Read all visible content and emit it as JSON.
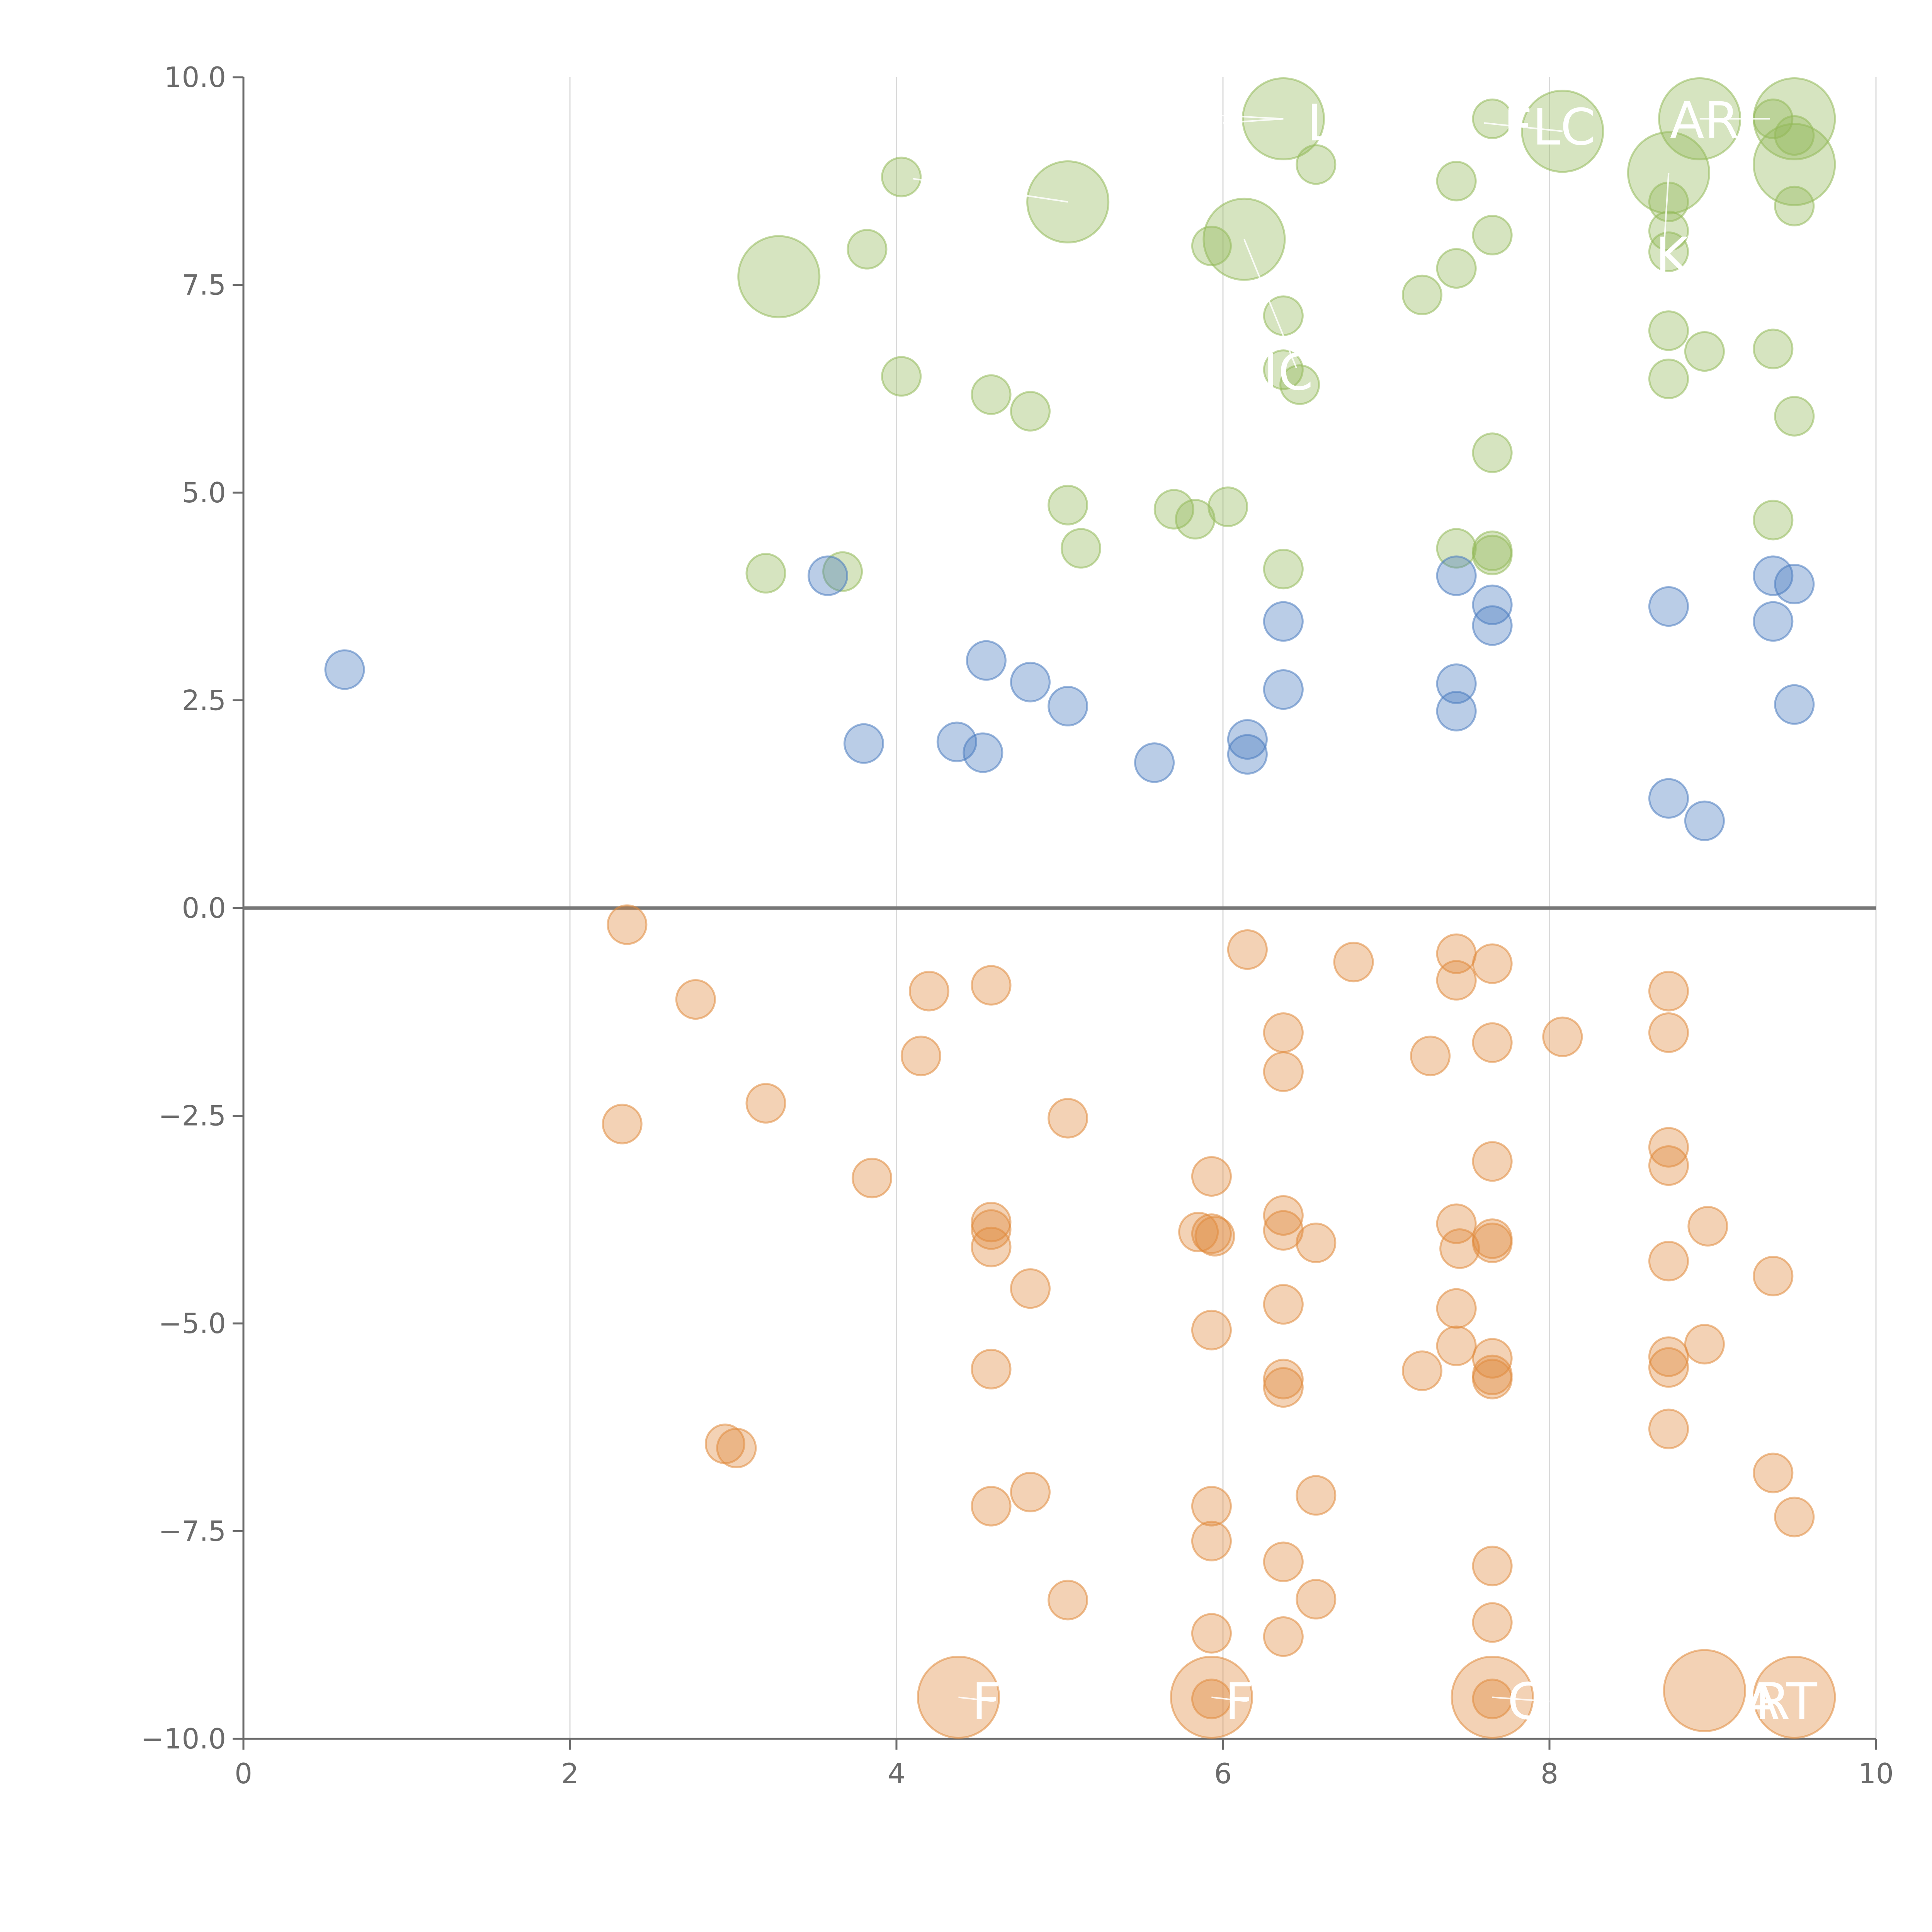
{
  "chart_data": {
    "type": "scatter",
    "title": "",
    "xlabel": "",
    "ylabel": "",
    "xlim": [
      0,
      10
    ],
    "ylim": [
      -10,
      10
    ],
    "x_ticks": [
      "0",
      "2",
      "4",
      "6",
      "8",
      "10"
    ],
    "y_ticks": [
      "−10.0",
      "−7.5",
      "−5.0",
      "−2.5",
      "0.0",
      "2.5",
      "5.0",
      "7.5",
      "10.0"
    ],
    "x_tick_values": [
      0,
      2,
      4,
      6,
      8,
      10
    ],
    "y_tick_values": [
      -10,
      -7.5,
      -5,
      -2.5,
      0,
      2.5,
      5,
      7.5,
      10
    ],
    "grid": "vertical lines at x ticks",
    "baseline": 0,
    "legend": "none",
    "colors": {
      "green": "#93b95a",
      "blue": "#4a7bbf",
      "orange": "#e08a3c",
      "axis": "#6b6b6b",
      "grid": "#d8d8d8",
      "baseline": "#777777"
    },
    "bubble_size_levels": {
      "small": 1,
      "large": 2.1
    },
    "series": [
      {
        "color_key": "green",
        "points": [
          [
            6.37,
            9.5,
            2
          ],
          [
            7.65,
            9.5,
            1
          ],
          [
            8.08,
            9.35,
            2
          ],
          [
            8.92,
            9.5,
            2
          ],
          [
            9.37,
            9.5,
            1
          ],
          [
            9.5,
            9.5,
            2
          ],
          [
            9.5,
            9.3,
            1
          ],
          [
            9.5,
            8.95,
            2
          ],
          [
            8.73,
            8.85,
            2
          ],
          [
            4.03,
            8.8,
            1
          ],
          [
            6.57,
            8.95,
            1
          ],
          [
            7.43,
            8.75,
            1
          ],
          [
            5.05,
            8.5,
            2
          ],
          [
            8.73,
            8.5,
            1
          ],
          [
            9.5,
            8.45,
            1
          ],
          [
            8.73,
            8.15,
            1
          ],
          [
            7.65,
            8.1,
            1
          ],
          [
            6.13,
            8.05,
            2
          ],
          [
            5.93,
            7.97,
            1
          ],
          [
            3.28,
            7.6,
            2
          ],
          [
            3.82,
            7.93,
            1
          ],
          [
            8.73,
            7.9,
            1
          ],
          [
            7.43,
            7.7,
            1
          ],
          [
            7.22,
            7.38,
            1
          ],
          [
            6.37,
            7.13,
            1
          ],
          [
            8.73,
            6.95,
            1
          ],
          [
            8.95,
            6.7,
            1
          ],
          [
            9.37,
            6.73,
            1
          ],
          [
            4.03,
            6.4,
            1
          ],
          [
            6.37,
            6.48,
            1
          ],
          [
            6.47,
            6.3,
            1
          ],
          [
            4.58,
            6.18,
            1
          ],
          [
            4.82,
            5.98,
            1
          ],
          [
            8.73,
            6.37,
            1
          ],
          [
            9.5,
            5.92,
            1
          ],
          [
            7.65,
            5.48,
            1
          ],
          [
            5.05,
            4.85,
            1
          ],
          [
            5.7,
            4.8,
            1
          ],
          [
            5.83,
            4.68,
            1
          ],
          [
            6.03,
            4.83,
            1
          ],
          [
            9.37,
            4.67,
            1
          ],
          [
            5.13,
            4.33,
            1
          ],
          [
            7.43,
            4.33,
            1
          ],
          [
            7.65,
            4.3,
            1
          ],
          [
            7.65,
            4.25,
            1
          ],
          [
            3.2,
            4.03,
            1
          ],
          [
            3.67,
            4.05,
            1
          ],
          [
            6.37,
            4.08,
            1
          ]
        ]
      },
      {
        "color_key": "blue",
        "points": [
          [
            0.62,
            2.87,
            1
          ],
          [
            3.58,
            4.0,
            1
          ],
          [
            3.8,
            1.98,
            1
          ],
          [
            4.37,
            2.0,
            1
          ],
          [
            4.53,
            1.87,
            1
          ],
          [
            4.55,
            2.98,
            1
          ],
          [
            4.82,
            2.72,
            1
          ],
          [
            5.05,
            2.43,
            1
          ],
          [
            5.58,
            1.75,
            1
          ],
          [
            6.15,
            2.03,
            1
          ],
          [
            6.15,
            1.85,
            1
          ],
          [
            6.37,
            3.45,
            1
          ],
          [
            6.37,
            2.63,
            1
          ],
          [
            7.43,
            4.0,
            1
          ],
          [
            7.43,
            2.7,
            1
          ],
          [
            7.43,
            2.37,
            1
          ],
          [
            7.65,
            3.65,
            1
          ],
          [
            7.65,
            3.4,
            1
          ],
          [
            8.73,
            3.63,
            1
          ],
          [
            8.73,
            1.32,
            1
          ],
          [
            8.95,
            1.05,
            1
          ],
          [
            9.37,
            4.0,
            1
          ],
          [
            9.37,
            3.45,
            1
          ],
          [
            9.5,
            3.9,
            1
          ],
          [
            9.5,
            2.45,
            1
          ]
        ]
      },
      {
        "color_key": "orange",
        "points": [
          [
            2.35,
            -0.2,
            1
          ],
          [
            2.77,
            -1.1,
            1
          ],
          [
            2.32,
            -2.6,
            1
          ],
          [
            3.2,
            -2.35,
            1
          ],
          [
            3.85,
            -3.25,
            1
          ],
          [
            4.15,
            -1.78,
            1
          ],
          [
            4.2,
            -1.0,
            1
          ],
          [
            4.58,
            -0.93,
            1
          ],
          [
            5.05,
            -2.53,
            1
          ],
          [
            2.95,
            -6.45,
            1
          ],
          [
            3.02,
            -6.5,
            1
          ],
          [
            4.58,
            -3.78,
            1
          ],
          [
            4.58,
            -3.87,
            1
          ],
          [
            4.58,
            -4.08,
            1
          ],
          [
            4.82,
            -4.58,
            1
          ],
          [
            4.58,
            -5.55,
            1
          ],
          [
            4.82,
            -7.03,
            1
          ],
          [
            4.58,
            -7.2,
            1
          ],
          [
            5.05,
            -8.33,
            1
          ],
          [
            4.38,
            -9.5,
            2
          ],
          [
            5.93,
            -9.5,
            2
          ],
          [
            5.93,
            -9.52,
            1
          ],
          [
            6.15,
            -0.5,
            1
          ],
          [
            6.8,
            -0.65,
            1
          ],
          [
            6.37,
            -1.5,
            1
          ],
          [
            6.37,
            -1.97,
            1
          ],
          [
            5.93,
            -3.23,
            1
          ],
          [
            5.85,
            -3.9,
            1
          ],
          [
            5.93,
            -3.92,
            1
          ],
          [
            5.95,
            -3.95,
            1
          ],
          [
            6.37,
            -3.7,
            1
          ],
          [
            6.37,
            -3.88,
            1
          ],
          [
            6.57,
            -4.03,
            1
          ],
          [
            6.37,
            -4.77,
            1
          ],
          [
            5.93,
            -5.08,
            1
          ],
          [
            6.37,
            -5.67,
            1
          ],
          [
            6.37,
            -5.77,
            1
          ],
          [
            6.57,
            -7.07,
            1
          ],
          [
            5.93,
            -7.2,
            1
          ],
          [
            5.93,
            -7.62,
            1
          ],
          [
            6.37,
            -7.87,
            1
          ],
          [
            6.57,
            -8.32,
            1
          ],
          [
            5.93,
            -8.73,
            1
          ],
          [
            6.37,
            -8.77,
            1
          ],
          [
            7.43,
            -0.55,
            1
          ],
          [
            7.65,
            -0.67,
            1
          ],
          [
            7.43,
            -0.87,
            1
          ],
          [
            7.65,
            -1.62,
            1
          ],
          [
            8.08,
            -1.55,
            1
          ],
          [
            7.27,
            -1.78,
            1
          ],
          [
            7.65,
            -3.05,
            1
          ],
          [
            7.43,
            -3.8,
            1
          ],
          [
            7.45,
            -4.1,
            1
          ],
          [
            7.65,
            -3.98,
            1
          ],
          [
            7.65,
            -4.03,
            1
          ],
          [
            7.43,
            -4.82,
            1
          ],
          [
            7.43,
            -5.27,
            1
          ],
          [
            7.65,
            -5.42,
            1
          ],
          [
            7.22,
            -5.57,
            1
          ],
          [
            7.65,
            -5.62,
            1
          ],
          [
            7.65,
            -5.67,
            1
          ],
          [
            7.65,
            -7.92,
            1
          ],
          [
            7.65,
            -8.6,
            1
          ],
          [
            7.65,
            -9.5,
            2
          ],
          [
            7.65,
            -9.52,
            1
          ],
          [
            8.73,
            -1.0,
            1
          ],
          [
            8.73,
            -1.5,
            1
          ],
          [
            8.73,
            -2.88,
            1
          ],
          [
            8.73,
            -3.1,
            1
          ],
          [
            8.97,
            -3.83,
            1
          ],
          [
            8.73,
            -4.25,
            1
          ],
          [
            8.73,
            -5.4,
            1
          ],
          [
            8.73,
            -5.53,
            1
          ],
          [
            8.95,
            -5.25,
            1
          ],
          [
            8.73,
            -6.27,
            1
          ],
          [
            9.37,
            -4.43,
            1
          ],
          [
            9.37,
            -6.8,
            1
          ],
          [
            9.5,
            -7.33,
            1
          ],
          [
            8.95,
            -9.42,
            2
          ],
          [
            9.5,
            -9.5,
            2
          ]
        ]
      }
    ],
    "callout_lines": [
      {
        "color_key": "green",
        "x1": 6.37,
        "y1": 9.5,
        "x2": 5.9,
        "y2": 9.55
      },
      {
        "color_key": "green",
        "x1": 6.37,
        "y1": 9.5,
        "x2": 6.0,
        "y2": 9.45
      },
      {
        "color_key": "green",
        "x1": 6.13,
        "y1": 8.05,
        "x2": 6.45,
        "y2": 6.5
      },
      {
        "color_key": "green",
        "x1": 8.73,
        "y1": 8.85,
        "x2": 8.7,
        "y2": 7.9
      },
      {
        "color_key": "green",
        "x1": 8.08,
        "y1": 9.35,
        "x2": 7.6,
        "y2": 9.45
      },
      {
        "color_key": "green",
        "x1": 8.92,
        "y1": 9.5,
        "x2": 9.35,
        "y2": 9.5
      },
      {
        "color_key": "green",
        "x1": 5.05,
        "y1": 8.5,
        "x2": 4.1,
        "y2": 8.78
      },
      {
        "color_key": "orange",
        "x1": 4.38,
        "y1": -9.5,
        "x2": 4.6,
        "y2": -9.55
      },
      {
        "color_key": "orange",
        "x1": 5.93,
        "y1": -9.5,
        "x2": 6.15,
        "y2": -9.55
      },
      {
        "color_key": "orange",
        "x1": 7.65,
        "y1": -9.5,
        "x2": 8.0,
        "y2": -9.55
      }
    ],
    "data_labels": [
      {
        "text": "L",
        "x": 6.6,
        "y": 9.45
      },
      {
        "text": "FLC",
        "x": 8.0,
        "y": 9.4
      },
      {
        "text": "AR",
        "x": 8.95,
        "y": 9.48
      },
      {
        "text": "K",
        "x": 8.75,
        "y": 7.85
      },
      {
        "text": "JC",
        "x": 6.4,
        "y": 6.45
      },
      {
        "text": "F",
        "x": 4.55,
        "y": -9.55
      },
      {
        "text": "F",
        "x": 6.1,
        "y": -9.55
      },
      {
        "text": "C",
        "x": 7.85,
        "y": -9.55
      },
      {
        "text": "A",
        "x": 9.3,
        "y": -9.55
      },
      {
        "text": "RT",
        "x": 9.45,
        "y": -9.55
      }
    ]
  }
}
